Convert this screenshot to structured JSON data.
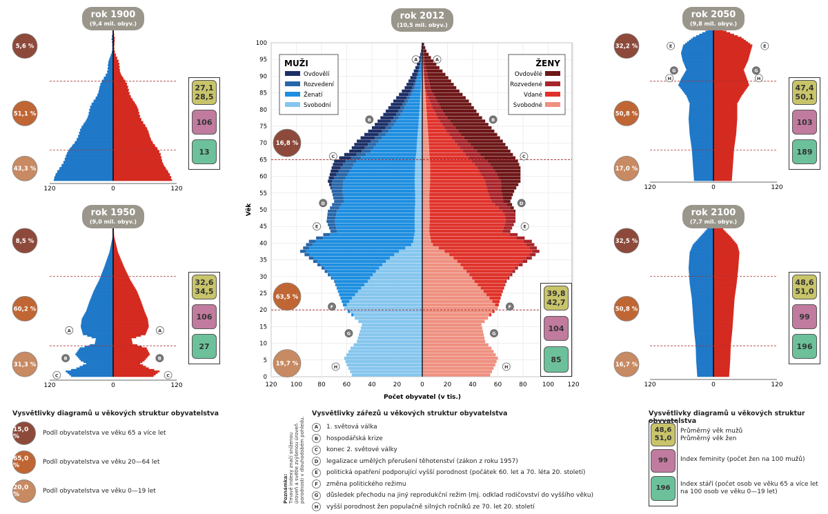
{
  "colors": {
    "male": "#1f78c8",
    "female": "#d42a20",
    "male_widowed": "#1c2f66",
    "male_divorced": "#2766a8",
    "male_married": "#1e8ee0",
    "male_single": "#86c6ee",
    "female_widowed": "#6e1718",
    "female_divorced": "#a8242a",
    "female_married": "#e0322a",
    "female_single": "#ef9080",
    "c65": "#8d4a3b",
    "c20": "#c06634",
    "c0": "#c88a62",
    "avg": "#c8c46a",
    "fem": "#c07b9e",
    "old": "#6cc19b",
    "header": "#9a968c"
  },
  "pyramids": [
    {
      "id": "p1900",
      "year": "rok 1900",
      "pop": "(9,4 mil. obyv.)",
      "ax": {
        "left": "120",
        "zero": "0",
        "right": "120"
      },
      "shares": {
        "s65": "5,6 %",
        "s20": "51,1 %",
        "s0": "43,3 %"
      },
      "avg_m": "27,1",
      "avg_f": "28,5",
      "fem": "106",
      "old": "13",
      "male": [
        [
          0,
          110
        ],
        [
          10,
          96
        ],
        [
          20,
          80
        ],
        [
          30,
          63
        ],
        [
          40,
          50
        ],
        [
          50,
          38
        ],
        [
          60,
          25
        ],
        [
          70,
          13
        ],
        [
          80,
          5
        ],
        [
          90,
          1
        ],
        [
          100,
          0
        ]
      ],
      "female": [
        [
          0,
          108
        ],
        [
          10,
          95
        ],
        [
          20,
          82
        ],
        [
          30,
          66
        ],
        [
          40,
          53
        ],
        [
          50,
          40
        ],
        [
          60,
          27
        ],
        [
          70,
          15
        ],
        [
          80,
          6
        ],
        [
          90,
          1.5
        ],
        [
          100,
          0
        ]
      ],
      "notches": []
    },
    {
      "id": "p1950",
      "year": "rok 1950",
      "pop": "(9,0 mil. obyv.)",
      "ax": {
        "left": "120",
        "zero": "0",
        "right": "120"
      },
      "shares": {
        "s65": "8,5 %",
        "s20": "60,2 %",
        "s0": "31,3 %"
      },
      "avg_m": "32,6",
      "avg_f": "34,5",
      "fem": "106",
      "old": "27",
      "male": [
        [
          0,
          78
        ],
        [
          3,
          88
        ],
        [
          5,
          68
        ],
        [
          8,
          50
        ],
        [
          10,
          60
        ],
        [
          14,
          70
        ],
        [
          18,
          62
        ],
        [
          21,
          34
        ],
        [
          24,
          32
        ],
        [
          27,
          56
        ],
        [
          32,
          60
        ],
        [
          37,
          58
        ],
        [
          42,
          50
        ],
        [
          48,
          44
        ],
        [
          55,
          36
        ],
        [
          62,
          26
        ],
        [
          70,
          17
        ],
        [
          80,
          7
        ],
        [
          90,
          1
        ],
        [
          100,
          0
        ]
      ],
      "female": [
        [
          0,
          75
        ],
        [
          3,
          86
        ],
        [
          5,
          66
        ],
        [
          8,
          50
        ],
        [
          10,
          58
        ],
        [
          14,
          68
        ],
        [
          18,
          62
        ],
        [
          21,
          36
        ],
        [
          24,
          34
        ],
        [
          27,
          60
        ],
        [
          32,
          66
        ],
        [
          37,
          64
        ],
        [
          42,
          58
        ],
        [
          48,
          52
        ],
        [
          55,
          44
        ],
        [
          62,
          32
        ],
        [
          70,
          21
        ],
        [
          80,
          9
        ],
        [
          90,
          2
        ],
        [
          100,
          0
        ]
      ],
      "notches": [
        {
          "age": 30,
          "label": "A"
        },
        {
          "age": 12,
          "label": "B"
        },
        {
          "age": 1,
          "label": "C"
        }
      ]
    },
    {
      "id": "p2050",
      "year": "rok 2050",
      "pop": "(9,8 mil. obyv.)",
      "ax": {
        "left": "120",
        "zero": "0",
        "right": "120"
      },
      "shares": {
        "s65": "32,2 %",
        "s20": "50,8 %",
        "s0": "17,0 %"
      },
      "avg_m": "47,4",
      "avg_f": "50,1",
      "fem": "103",
      "old": "189",
      "male": [
        [
          0,
          36
        ],
        [
          10,
          38
        ],
        [
          20,
          40
        ],
        [
          30,
          44
        ],
        [
          40,
          46
        ],
        [
          50,
          44
        ],
        [
          55,
          50
        ],
        [
          62,
          65
        ],
        [
          66,
          60
        ],
        [
          72,
          50
        ],
        [
          78,
          57
        ],
        [
          83,
          60
        ],
        [
          88,
          56
        ],
        [
          93,
          38
        ],
        [
          97,
          15
        ],
        [
          100,
          2
        ]
      ],
      "female": [
        [
          0,
          34
        ],
        [
          10,
          36
        ],
        [
          20,
          38
        ],
        [
          30,
          42
        ],
        [
          40,
          44
        ],
        [
          50,
          44
        ],
        [
          55,
          52
        ],
        [
          62,
          66
        ],
        [
          66,
          62
        ],
        [
          72,
          56
        ],
        [
          78,
          64
        ],
        [
          83,
          68
        ],
        [
          88,
          72
        ],
        [
          93,
          52
        ],
        [
          97,
          24
        ],
        [
          100,
          4
        ]
      ],
      "notches": [
        {
          "age": 88,
          "label": "E"
        },
        {
          "age": 72,
          "label": "G"
        },
        {
          "age": 67,
          "label": "H"
        }
      ]
    },
    {
      "id": "p2100",
      "year": "rok 2100",
      "pop": "(7,7 mil. obyv.)",
      "ax": {
        "left": "120",
        "zero": "0",
        "right": "120"
      },
      "shares": {
        "s65": "32,5 %",
        "s20": "50,8 %",
        "s0": "16,7 %"
      },
      "avg_m": "48,6",
      "avg_f": "51,0",
      "fem": "99",
      "old": "196",
      "male": [
        [
          0,
          30
        ],
        [
          10,
          32
        ],
        [
          20,
          33
        ],
        [
          30,
          36
        ],
        [
          40,
          38
        ],
        [
          50,
          40
        ],
        [
          60,
          44
        ],
        [
          70,
          46
        ],
        [
          80,
          44
        ],
        [
          85,
          38
        ],
        [
          90,
          25
        ],
        [
          95,
          12
        ],
        [
          100,
          3
        ]
      ],
      "female": [
        [
          0,
          29
        ],
        [
          10,
          31
        ],
        [
          20,
          32
        ],
        [
          30,
          35
        ],
        [
          40,
          37
        ],
        [
          50,
          39
        ],
        [
          60,
          43
        ],
        [
          70,
          46
        ],
        [
          80,
          48
        ],
        [
          85,
          44
        ],
        [
          90,
          32
        ],
        [
          95,
          18
        ],
        [
          100,
          5
        ]
      ],
      "notches": []
    }
  ],
  "main": {
    "year": "rok 2012",
    "pop": "(10,5 mil. obyv.)",
    "ylabel": "Věk",
    "xlabel": "Počet obyvatel (v tis.)",
    "xticks": [
      "120",
      "100",
      "80",
      "60",
      "40",
      "20",
      "0",
      "20",
      "40",
      "60",
      "80",
      "100",
      "120"
    ],
    "yticks": [
      "0",
      "5",
      "10",
      "15",
      "20",
      "25",
      "30",
      "35",
      "40",
      "45",
      "50",
      "55",
      "60",
      "65",
      "70",
      "75",
      "80",
      "85",
      "90",
      "95",
      "100"
    ],
    "shares": {
      "s65": "16,8 %",
      "s20": "63,5 %",
      "s0": "19,7 %"
    },
    "avg_m": "39,8",
    "avg_f": "42,7",
    "fem": "104",
    "old": "85",
    "legend_m": {
      "title": "MUŽI",
      "items": [
        "Ovdovělí",
        "Rozvedení",
        "Ženatí",
        "Svobodní"
      ]
    },
    "legend_f": {
      "title": "ŽENY",
      "items": [
        "Ovdovělé",
        "Rozvedené",
        "Vdané",
        "Svobodné"
      ]
    },
    "male_total": [
      [
        0,
        56
      ],
      [
        3,
        60
      ],
      [
        5,
        62
      ],
      [
        8,
        57
      ],
      [
        10,
        52
      ],
      [
        15,
        48
      ],
      [
        20,
        62
      ],
      [
        24,
        66
      ],
      [
        28,
        70
      ],
      [
        32,
        80
      ],
      [
        35,
        90
      ],
      [
        37,
        97
      ],
      [
        40,
        90
      ],
      [
        43,
        73
      ],
      [
        46,
        76
      ],
      [
        49,
        75
      ],
      [
        52,
        70
      ],
      [
        55,
        72
      ],
      [
        58,
        75
      ],
      [
        62,
        72
      ],
      [
        64,
        70
      ],
      [
        67,
        58
      ],
      [
        70,
        52
      ],
      [
        74,
        40
      ],
      [
        78,
        31
      ],
      [
        82,
        23
      ],
      [
        86,
        14
      ],
      [
        90,
        8
      ],
      [
        94,
        3
      ],
      [
        97,
        1
      ],
      [
        100,
        0
      ]
    ],
    "female_total": [
      [
        0,
        54
      ],
      [
        3,
        58
      ],
      [
        5,
        60
      ],
      [
        8,
        55
      ],
      [
        10,
        50
      ],
      [
        15,
        47
      ],
      [
        20,
        60
      ],
      [
        24,
        63
      ],
      [
        28,
        67
      ],
      [
        32,
        76
      ],
      [
        35,
        87
      ],
      [
        37,
        93
      ],
      [
        40,
        87
      ],
      [
        43,
        70
      ],
      [
        46,
        74
      ],
      [
        49,
        74
      ],
      [
        52,
        70
      ],
      [
        55,
        73
      ],
      [
        58,
        78
      ],
      [
        62,
        78
      ],
      [
        64,
        76
      ],
      [
        67,
        70
      ],
      [
        70,
        64
      ],
      [
        74,
        55
      ],
      [
        78,
        45
      ],
      [
        82,
        37
      ],
      [
        86,
        27
      ],
      [
        90,
        17
      ],
      [
        94,
        8
      ],
      [
        97,
        3
      ],
      [
        100,
        0.5
      ]
    ],
    "notches": [
      {
        "age": 95,
        "label": "A"
      },
      {
        "age": 77,
        "label": "B"
      },
      {
        "age": 66,
        "label": "C"
      },
      {
        "age": 52,
        "label": "D"
      },
      {
        "age": 45,
        "label": "E"
      },
      {
        "age": 21,
        "label": "F"
      },
      {
        "age": 13,
        "label": "G"
      },
      {
        "age": 3,
        "label": "H"
      }
    ]
  },
  "legends": {
    "circles": {
      "title": "Vysvětlivky diagramů u věkových struktur obyvatelstva",
      "items": [
        {
          "value": "15,0 %",
          "text": "Podíl obyvatelstva ve věku 65 a více let"
        },
        {
          "value": "65,0 %",
          "text": "Podíl obyvatelstva ve věku 20—64 let"
        },
        {
          "value": "20,0 %",
          "text": "Podíl obyvatelstva ve věku 0—19 let"
        }
      ]
    },
    "notches": {
      "title": "Vysvětlivky zářezů u věkových struktur obyvatelstva",
      "side_title": "Poznámka:",
      "side_text": "Tmavě indexy značí sníženou úroveň a světle zvýšenou úroveň porodnosti v dlouhodobém pohledu.",
      "items": [
        {
          "label": "A",
          "text": "1. světová válka"
        },
        {
          "label": "B",
          "text": "hospodářská krize"
        },
        {
          "label": "C",
          "text": "konec 2. světové války"
        },
        {
          "label": "D",
          "text": "legalizace umělých přerušení těhotenství (zákon z roku 1957)"
        },
        {
          "label": "E",
          "text": "politická opatření podporující vyšší porodnost (počátek 60. let a 70. léta 20. století)"
        },
        {
          "label": "F",
          "text": "změna politického režimu"
        },
        {
          "label": "G",
          "text": "důsledek přechodu na jiný reprodukční režim (mj. odklad rodičovství do vyššího věku)"
        },
        {
          "label": "H",
          "text": "vyšší porodnost žen populačně silných ročníků ze 70. let 20. století"
        }
      ]
    },
    "index": {
      "title": "Vysvětlivky diagramů u věkových struktur obyvatelstva",
      "avg_m": "48,6",
      "avg_f": "51,0",
      "avg_text_m": "Průměrný věk mužů",
      "avg_text_f": "Průměrný věk žen",
      "fem": "99",
      "fem_text": "Index feminity (počet žen na 100 mužů)",
      "old": "196",
      "old_text_1": "Index stáří (počet osob ve věku 65 a více let",
      "old_text_2": "na 100 osob ve věku 0—19 let)"
    }
  }
}
